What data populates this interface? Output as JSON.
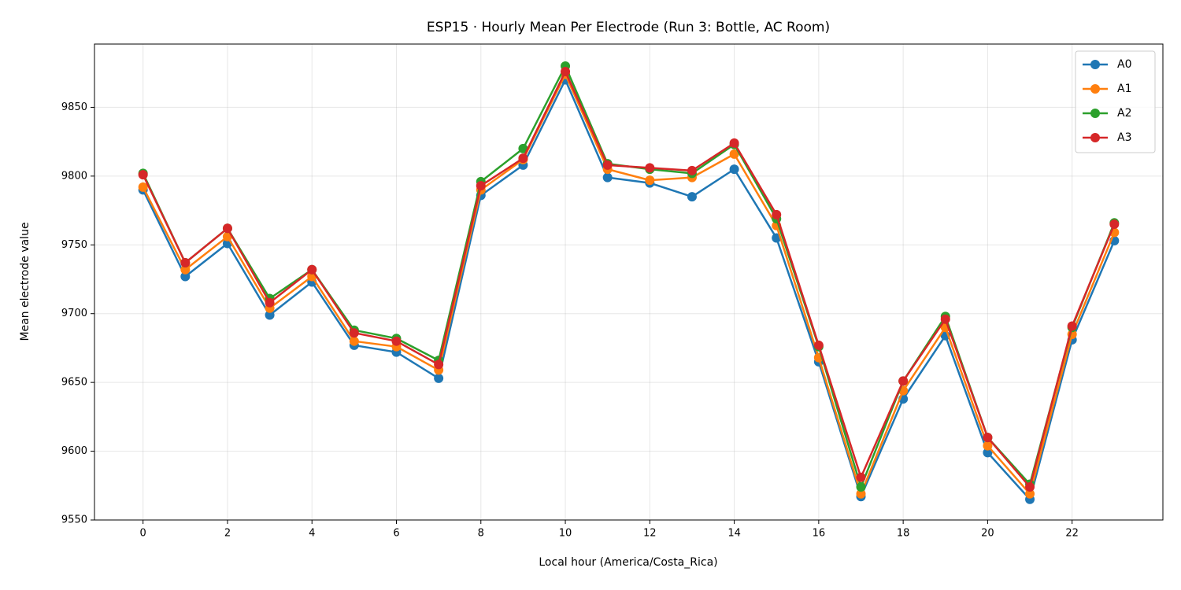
{
  "chart_data": {
    "type": "line",
    "title": "ESP15 · Hourly Mean Per Electrode (Run 3: Bottle, AC Room)",
    "x_label": "Local hour (America/Costa_Rica)",
    "y_label": "Mean electrode value",
    "x": [
      0,
      1,
      2,
      3,
      4,
      5,
      6,
      7,
      8,
      9,
      10,
      11,
      12,
      13,
      14,
      15,
      16,
      17,
      18,
      19,
      20,
      21,
      22,
      23
    ],
    "series": [
      {
        "name": "A0",
        "color": "#1f77b4",
        "values": [
          9790,
          9727,
          9751,
          9699,
          9723,
          9677,
          9672,
          9653,
          9786,
          9808,
          9870,
          9799,
          9795,
          9785,
          9805,
          9755,
          9665,
          9567,
          9638,
          9684,
          9599,
          9565,
          9681,
          9753
        ]
      },
      {
        "name": "A1",
        "color": "#ff7f0e",
        "values": [
          9792,
          9732,
          9756,
          9704,
          9727,
          9680,
          9676,
          9659,
          9790,
          9812,
          9874,
          9805,
          9797,
          9799,
          9816,
          9764,
          9668,
          9569,
          9644,
          9690,
          9604,
          9569,
          9685,
          9759
        ]
      },
      {
        "name": "A2",
        "color": "#2ca02c",
        "values": [
          9802,
          9737,
          9762,
          9711,
          9732,
          9688,
          9682,
          9666,
          9796,
          9820,
          9880,
          9809,
          9805,
          9802,
          9823,
          9769,
          9676,
          9574,
          9651,
          9698,
          9610,
          9576,
          9690,
          9766
        ]
      },
      {
        "name": "A3",
        "color": "#d62728",
        "values": [
          9801,
          9737,
          9762,
          9708,
          9732,
          9686,
          9680,
          9663,
          9793,
          9813,
          9876,
          9808,
          9806,
          9804,
          9824,
          9772,
          9677,
          9581,
          9651,
          9696,
          9610,
          9574,
          9691,
          9765
        ]
      }
    ],
    "xlim": [
      -1.15,
      24.15
    ],
    "xticks": [
      0,
      2,
      4,
      6,
      8,
      10,
      12,
      14,
      16,
      18,
      20,
      22
    ],
    "ylim": [
      9550,
      9896
    ],
    "yticks": [
      9550,
      9600,
      9650,
      9700,
      9750,
      9800,
      9850
    ],
    "grid": true,
    "legend": "upper right"
  }
}
